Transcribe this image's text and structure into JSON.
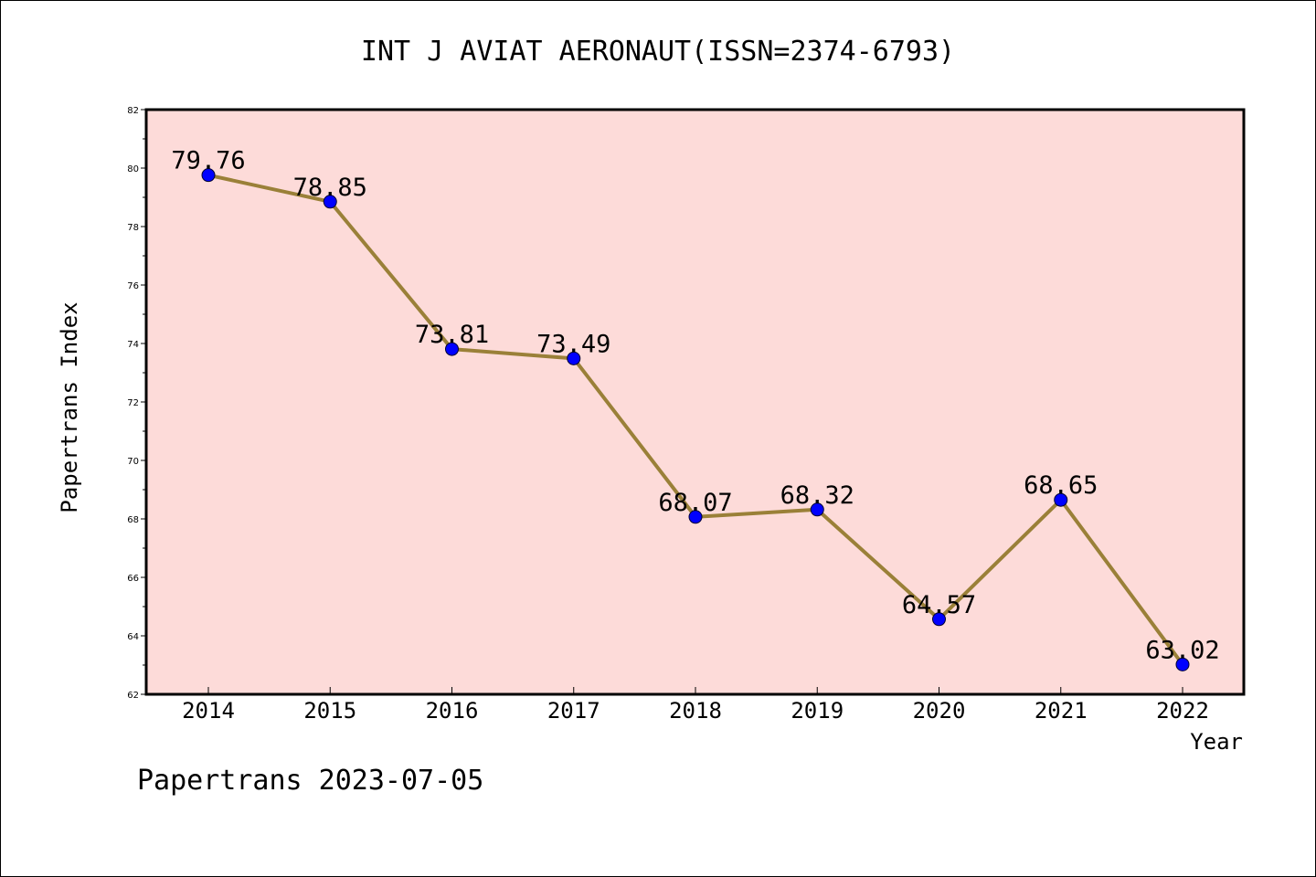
{
  "chart_data": {
    "type": "line",
    "title": "INT J AVIAT AERONAUT(ISSN=2374-6793)",
    "xlabel": "Year",
    "ylabel": "Papertrans Index",
    "categories": [
      "2014",
      "2015",
      "2016",
      "2017",
      "2018",
      "2019",
      "2020",
      "2021",
      "2022"
    ],
    "values": [
      79.76,
      78.85,
      73.81,
      73.49,
      68.07,
      68.32,
      64.57,
      68.65,
      63.02
    ],
    "data_labels": [
      "79.76",
      "78.85",
      "73.81",
      "73.49",
      "68.07",
      "68.32",
      "64.57",
      "68.65",
      "63.02"
    ],
    "ylim": [
      62,
      82
    ],
    "yticks": [
      62,
      64,
      66,
      68,
      70,
      72,
      74,
      76,
      78,
      80,
      82
    ],
    "grid": false,
    "colors": {
      "plot_background": "#fddbd9",
      "line": "#9a8038",
      "marker": "#0000ff"
    }
  },
  "footer": "Papertrans 2023-07-05"
}
